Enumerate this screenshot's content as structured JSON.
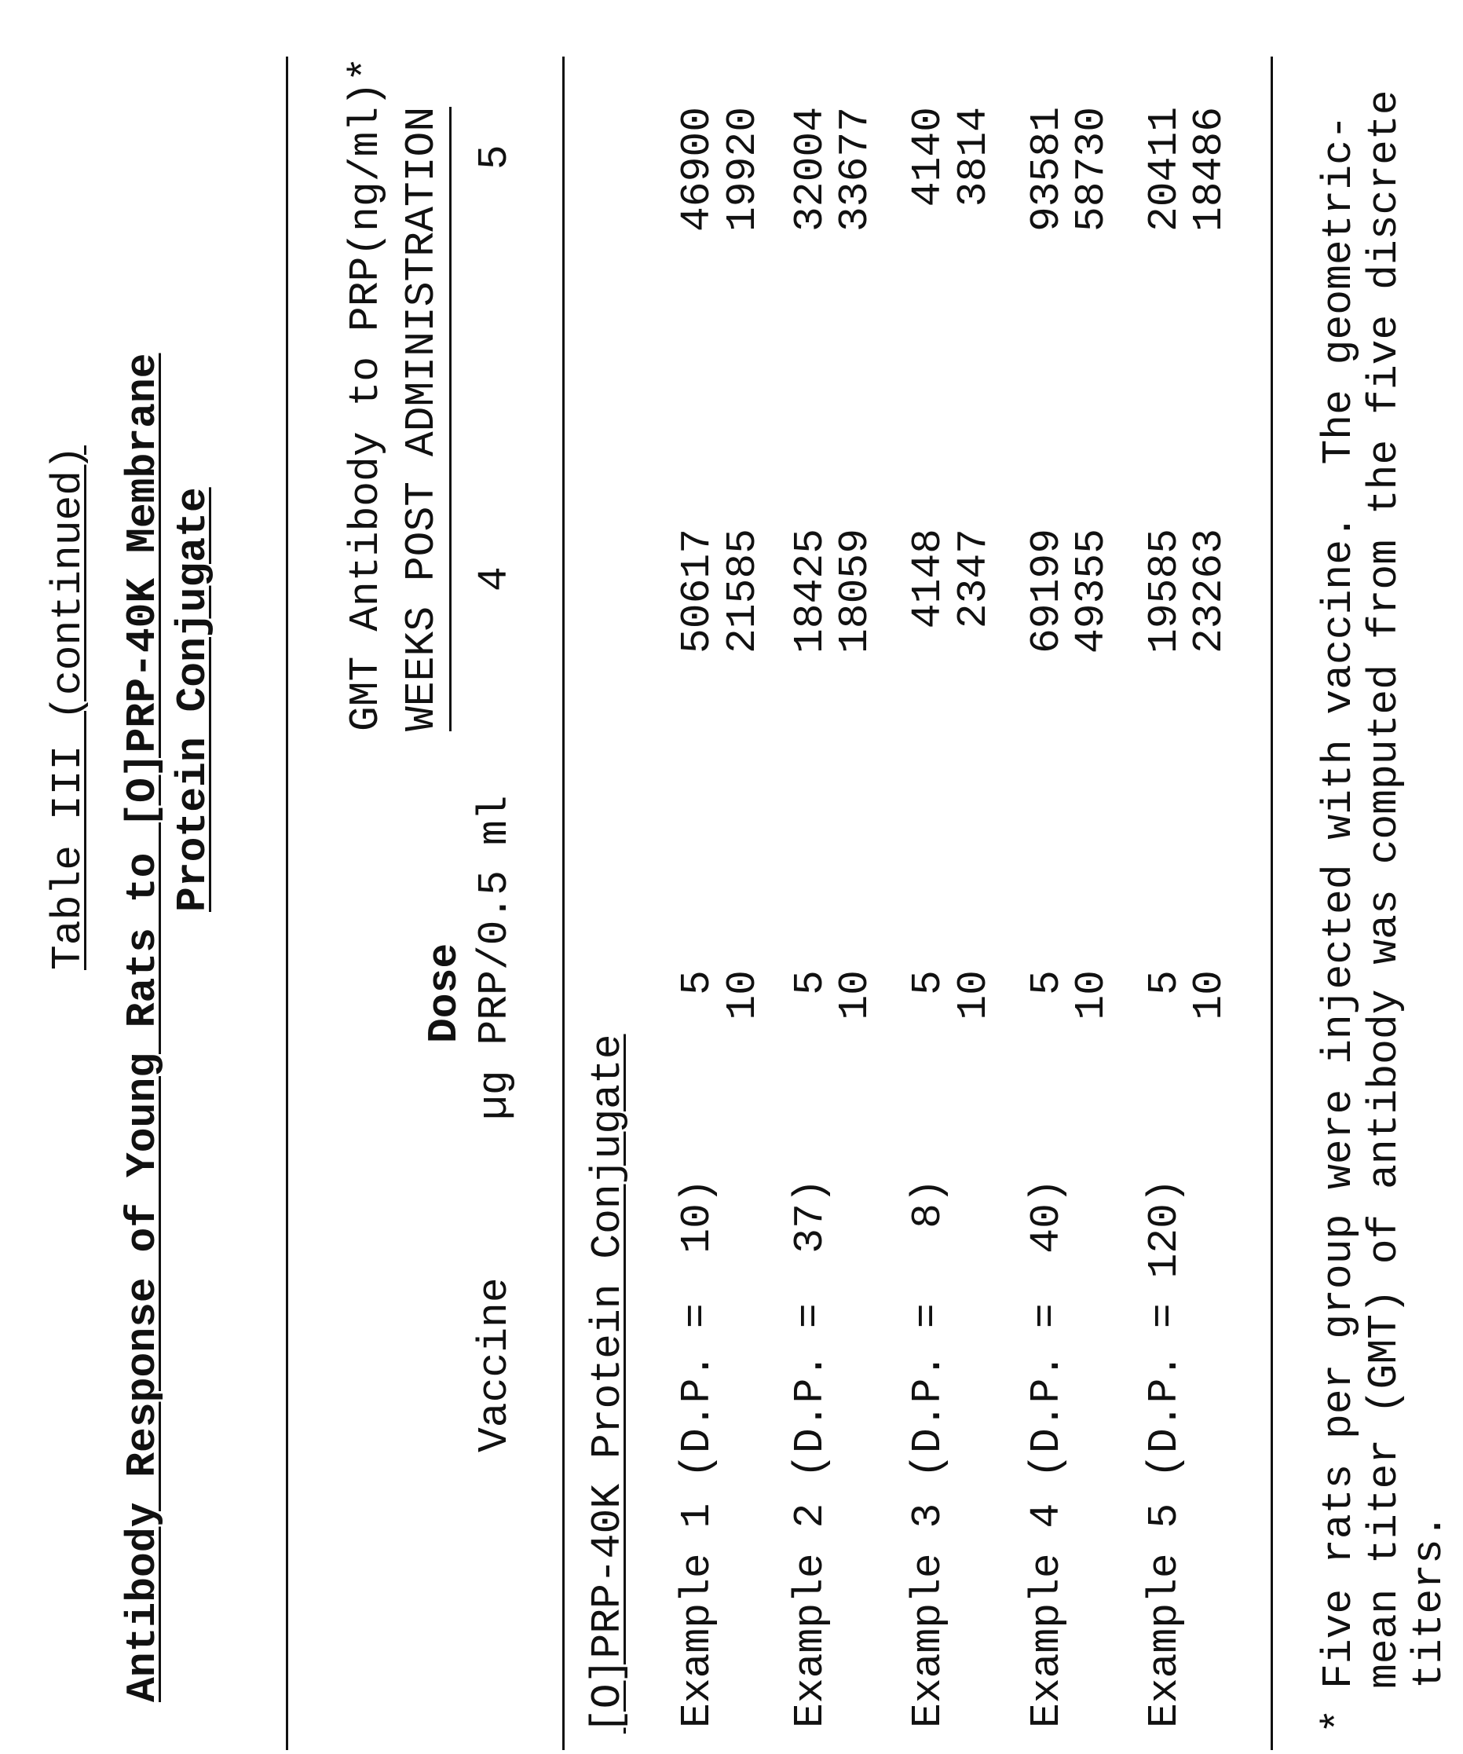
{
  "table": {
    "caption": "Table III (continued)",
    "title_line1": "Antibody Response of Young Rats to [O]PRP-40K Membrane",
    "title_line2": "Protein Conjugate",
    "headers": {
      "gmt": "GMT Antibody to PRP(ng/ml)*",
      "weeks": "WEEKS POST ADMINISTRATION",
      "dose": "Dose",
      "dose_unit": "µg PRP/0.5 ml",
      "vaccine": "Vaccine",
      "week4": "4",
      "week5": "5"
    },
    "group_label": "[O]PRP-40K Protein Conjugate",
    "examples": [
      {
        "vaccine": "Example 1 (D.P. =  10)",
        "rows": [
          {
            "dose": "5",
            "w4": "50617",
            "w5": "46900"
          },
          {
            "dose": "10",
            "w4": "21585",
            "w5": "19920"
          }
        ]
      },
      {
        "vaccine": "Example 2 (D.P. =  37)",
        "rows": [
          {
            "dose": "5",
            "w4": "18425",
            "w5": "32004"
          },
          {
            "dose": "10",
            "w4": "18059",
            "w5": "33677"
          }
        ]
      },
      {
        "vaccine": "Example 3 (D.P. =   8)",
        "rows": [
          {
            "dose": "5",
            "w4": "4148",
            "w5": "4140"
          },
          {
            "dose": "10",
            "w4": "2347",
            "w5": "3814"
          }
        ]
      },
      {
        "vaccine": "Example 4 (D.P. =  40)",
        "rows": [
          {
            "dose": "5",
            "w4": "69199",
            "w5": "93581"
          },
          {
            "dose": "10",
            "w4": "49355",
            "w5": "58730"
          }
        ]
      },
      {
        "vaccine": "Example 5 (D.P. = 120)",
        "rows": [
          {
            "dose": "5",
            "w4": "19585",
            "w5": "20411"
          },
          {
            "dose": "10",
            "w4": "23263",
            "w5": "18486"
          }
        ]
      }
    ],
    "footnote": {
      "marker": "*",
      "lines": [
        "Five rats per group were injected with vaccine.  The geometric-",
        "mean titer (GMT) of antibody was computed from the five discrete",
        "titers."
      ]
    }
  }
}
